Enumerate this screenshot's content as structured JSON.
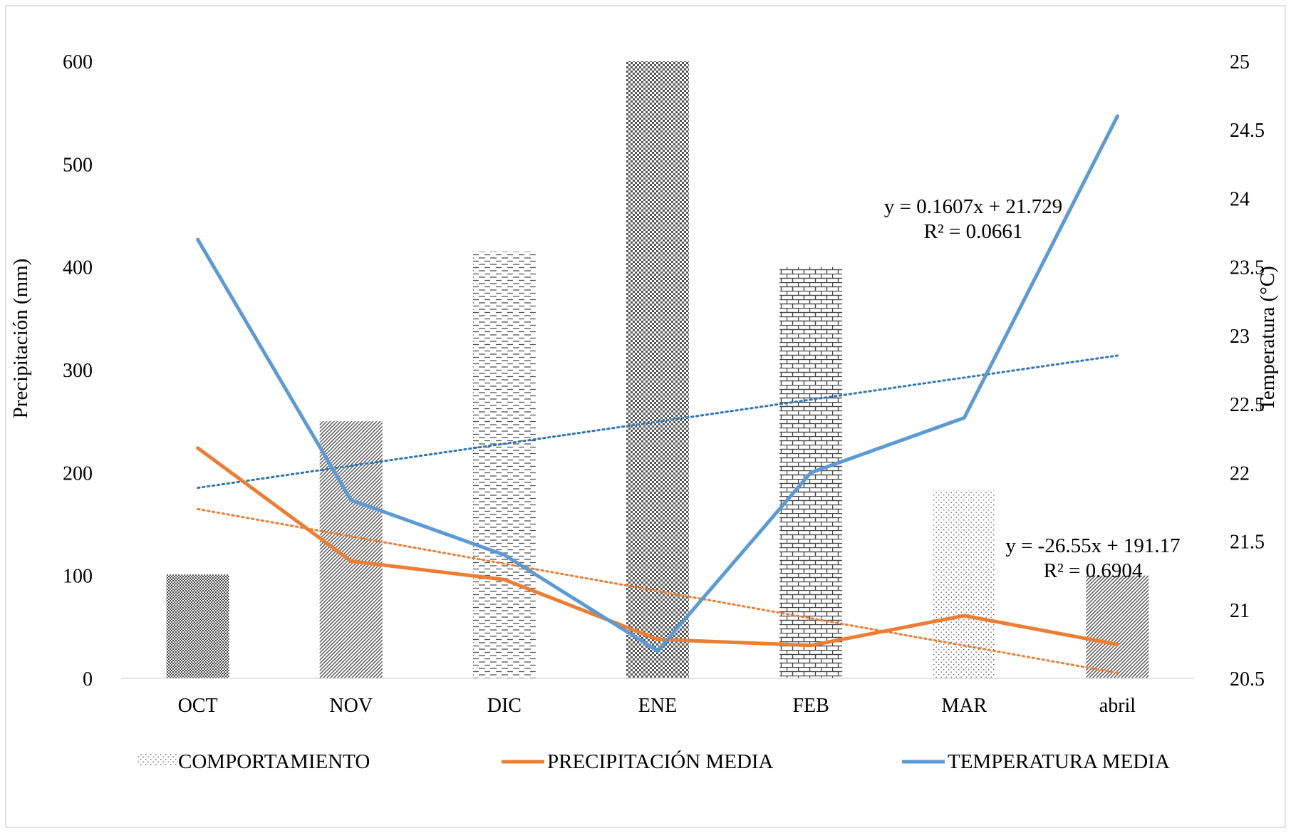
{
  "chart_data": {
    "type": "bar",
    "categories": [
      "OCT",
      "NOV",
      "DIC",
      "ENE",
      "FEB",
      "MAR",
      "abril"
    ],
    "bars": {
      "name": "COMPORTAMIENTO",
      "values": [
        101,
        250,
        415,
        600,
        400,
        183,
        100
      ],
      "patterns": [
        "dense-checker",
        "diagonal-hatch",
        "dashed-horizontal",
        "checker",
        "brick",
        "sparse-dots",
        "diagonal-hatch"
      ]
    },
    "series": [
      {
        "name": "PRECIPITACIÓN MEDIA",
        "axis": "left",
        "color": "#ED7D31",
        "values": [
          224,
          114,
          96,
          38,
          32,
          61,
          33
        ],
        "trendline": {
          "slope": -26.55,
          "intercept": 191.17,
          "equation": "y = -26.55x + 191.17",
          "r2": "R² = 0.6904"
        }
      },
      {
        "name": "TEMPERATURA MEDIA",
        "axis": "right",
        "color": "#5B9BD5",
        "values": [
          23.7,
          21.8,
          21.4,
          20.7,
          22.0,
          22.4,
          24.6
        ],
        "trendline": {
          "slope": 0.1607,
          "intercept": 21.729,
          "equation": "y = 0.1607x + 21.729",
          "r2": "R² = 0.0661",
          "color": "#2E75B6"
        }
      }
    ],
    "y_left": {
      "label": "Precipitación (mm)",
      "range": [
        0,
        600
      ],
      "ticks": [
        "0",
        "100",
        "200",
        "300",
        "400",
        "500",
        "600"
      ]
    },
    "y_right": {
      "label": "Temperatura (°C)",
      "range": [
        20.5,
        25
      ],
      "ticks": [
        "20.5",
        "21",
        "21.5",
        "22",
        "22.5",
        "23",
        "23.5",
        "24",
        "24.5",
        "25"
      ]
    },
    "grid": false,
    "legend_position": "bottom"
  }
}
